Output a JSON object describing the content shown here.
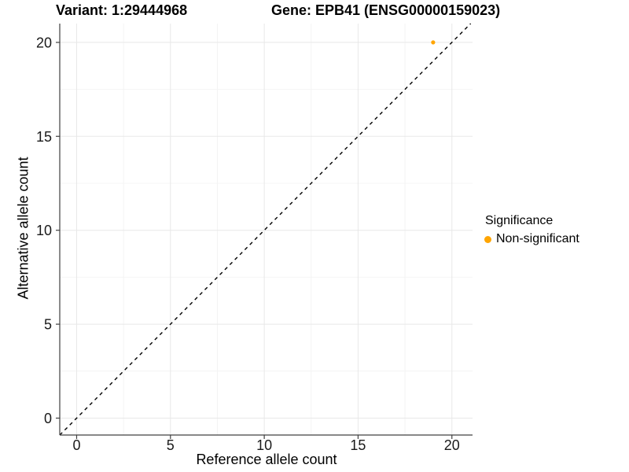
{
  "chart_data": {
    "type": "scatter",
    "title_left": "Variant: 1:29444968",
    "title_right": "Gene: EPB41 (ENSG00000159023)",
    "xlabel": "Reference allele count",
    "ylabel": "Alternative allele count",
    "xlim": [
      -0.9,
      21.1
    ],
    "ylim": [
      -0.9,
      21.0
    ],
    "x_ticks": [
      0,
      5,
      10,
      15,
      20
    ],
    "y_ticks": [
      0,
      5,
      10,
      15,
      20
    ],
    "x_minor": [
      2.5,
      7.5,
      12.5,
      17.5
    ],
    "y_minor": [
      2.5,
      7.5,
      12.5,
      17.5
    ],
    "grid": true,
    "legend_position": "right",
    "series": [
      {
        "name": "Non-significant",
        "color": "#FFA500",
        "points": [
          {
            "x": 19,
            "y": 20
          }
        ]
      }
    ],
    "reference_line": {
      "type": "identity",
      "slope": 1,
      "intercept": 0,
      "style": "dashed",
      "color": "#000000"
    }
  },
  "legend": {
    "title": "Significance",
    "items": [
      {
        "label": "Non-significant",
        "color": "#FFA500",
        "marker": "circle"
      }
    ]
  },
  "colors": {
    "point": "#FFA500",
    "grid_major": "#E8E8E8",
    "grid_minor": "#F4F4F4",
    "axis": "#404040",
    "tick_text": "#1A1A1A",
    "background": "#FFFFFF"
  }
}
